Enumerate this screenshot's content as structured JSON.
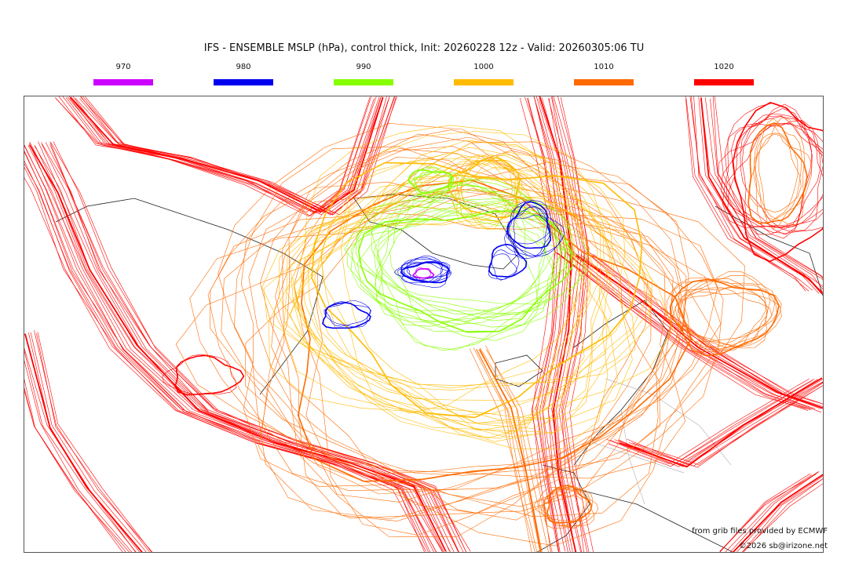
{
  "title": "IFS - ENSEMBLE MSLP (hPa), control thick, Init: 20260228 12z - Valid: 20260305:06 TU",
  "legend": [
    {
      "label": "970",
      "color": "#cc00ff"
    },
    {
      "label": "980",
      "color": "#0000ee"
    },
    {
      "label": "990",
      "color": "#88ff00"
    },
    {
      "label": "1000",
      "color": "#ffbb00"
    },
    {
      "label": "1010",
      "color": "#ff6a00"
    },
    {
      "label": "1020",
      "color": "#ff0000"
    }
  ],
  "credits": {
    "source": "from grib files provided by ECMWF",
    "copyright": "©2026 sb@irizone.net"
  }
}
